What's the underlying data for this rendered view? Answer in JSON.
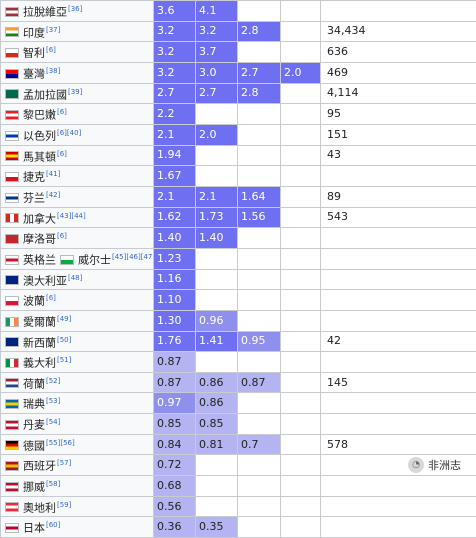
{
  "colors": {
    "v_high": "#6f6ff2",
    "v_mid": "#8f8fee",
    "v_low": "#b4b4f2"
  },
  "columns": [
    "country",
    "v1",
    "v2",
    "v3",
    "v4",
    "extra"
  ],
  "rows": [
    {
      "country": "拉脫維亞",
      "ref": "[36]",
      "flag": [
        "#9e3039",
        "#ffffff",
        "#9e3039"
      ],
      "flag_dir": "h",
      "values": [
        "3.6",
        "4.1",
        "",
        ""
      ],
      "extra": ""
    },
    {
      "country": "印度",
      "ref": "[37]",
      "flag": [
        "#ff9933",
        "#ffffff",
        "#138808"
      ],
      "flag_dir": "h",
      "values": [
        "3.2",
        "3.2",
        "2.8",
        ""
      ],
      "extra": "34,434"
    },
    {
      "country": "智利",
      "ref": "[6]",
      "flag": [
        "#ffffff",
        "#d52b1e"
      ],
      "flag_dir": "h",
      "values": [
        "3.2",
        "3.7",
        "",
        ""
      ],
      "extra": "636"
    },
    {
      "country": "臺灣",
      "ref": "[38]",
      "flag": [
        "#fe0000",
        "#000095"
      ],
      "flag_dir": "h",
      "values": [
        "3.2",
        "3.0",
        "2.7",
        "2.0"
      ],
      "extra": "469"
    },
    {
      "country": "孟加拉國",
      "ref": "[39]",
      "flag": [
        "#006a4e"
      ],
      "flag_dir": "h",
      "values": [
        "2.7",
        "2.7",
        "2.8",
        ""
      ],
      "extra": "4,114"
    },
    {
      "country": "黎巴嫩",
      "ref": "[6]",
      "flag": [
        "#ed1c24",
        "#ffffff",
        "#ed1c24"
      ],
      "flag_dir": "h",
      "values": [
        "2.2",
        "",
        "",
        ""
      ],
      "extra": "95"
    },
    {
      "country": "以色列",
      "ref": "[6][40]",
      "flag": [
        "#ffffff",
        "#0038b8",
        "#ffffff"
      ],
      "flag_dir": "h",
      "values": [
        "2.1",
        "2.0",
        "",
        ""
      ],
      "extra": "151"
    },
    {
      "country": "馬其頓",
      "ref": "[6]",
      "flag": [
        "#d20000",
        "#ffe600",
        "#d20000"
      ],
      "flag_dir": "h",
      "values": [
        "1.94",
        "",
        "",
        ""
      ],
      "extra": "43"
    },
    {
      "country": "捷克",
      "ref": "[41]",
      "flag": [
        "#ffffff",
        "#d7141a"
      ],
      "flag_dir": "h",
      "values": [
        "1.67",
        "",
        "",
        ""
      ],
      "extra": ""
    },
    {
      "country": "芬兰",
      "ref": "[42]",
      "flag": [
        "#ffffff",
        "#003580",
        "#ffffff"
      ],
      "flag_dir": "h",
      "values": [
        "2.1",
        "2.1",
        "1.64",
        ""
      ],
      "extra": "89"
    },
    {
      "country": "加拿大",
      "ref": "[43][44]",
      "flag": [
        "#d52b1e",
        "#ffffff",
        "#d52b1e"
      ],
      "flag_dir": "v",
      "values": [
        "1.62",
        "1.73",
        "1.56",
        ""
      ],
      "extra": "543"
    },
    {
      "country": "摩洛哥",
      "ref": "[6]",
      "flag": [
        "#c1272d"
      ],
      "flag_dir": "h",
      "values": [
        "1.40",
        "1.40",
        "",
        ""
      ],
      "extra": ""
    },
    {
      "country": "英格兰",
      "ref": "",
      "country2": "威尔士",
      "ref2": "[45][46][47]",
      "flag": [
        "#ffffff",
        "#ce1124",
        "#ffffff"
      ],
      "flag_dir": "h",
      "flag2": [
        "#ffffff",
        "#00b140"
      ],
      "values": [
        "1.23",
        "",
        "",
        ""
      ],
      "extra": ""
    },
    {
      "country": "澳大利亚",
      "ref": "[48]",
      "flag": [
        "#00247d"
      ],
      "flag_dir": "h",
      "values": [
        "1.16",
        "",
        "",
        ""
      ],
      "extra": ""
    },
    {
      "country": "波蘭",
      "ref": "[6]",
      "flag": [
        "#ffffff",
        "#dc143c"
      ],
      "flag_dir": "h",
      "values": [
        "1.10",
        "",
        "",
        ""
      ],
      "extra": ""
    },
    {
      "country": "愛爾蘭",
      "ref": "[49]",
      "flag": [
        "#169b62",
        "#ffffff",
        "#ff883e"
      ],
      "flag_dir": "v",
      "values": [
        "1.30",
        "0.96",
        "",
        ""
      ],
      "extra": ""
    },
    {
      "country": "新西蘭",
      "ref": "[50]",
      "flag": [
        "#00247d"
      ],
      "flag_dir": "h",
      "values": [
        "1.76",
        "1.41",
        "0.95",
        ""
      ],
      "extra": "42"
    },
    {
      "country": "義大利",
      "ref": "[51]",
      "flag": [
        "#009246",
        "#ffffff",
        "#ce2b37"
      ],
      "flag_dir": "v",
      "values": [
        "0.87",
        "",
        "",
        ""
      ],
      "extra": ""
    },
    {
      "country": "荷蘭",
      "ref": "[52]",
      "flag": [
        "#ae1c28",
        "#ffffff",
        "#21468b"
      ],
      "flag_dir": "h",
      "values": [
        "0.87",
        "0.86",
        "0.87",
        ""
      ],
      "extra": "145"
    },
    {
      "country": "瑞典",
      "ref": "[53]",
      "flag": [
        "#006aa7",
        "#fecc00",
        "#006aa7"
      ],
      "flag_dir": "h",
      "values": [
        "0.97",
        "0.86",
        "",
        ""
      ],
      "extra": ""
    },
    {
      "country": "丹麦",
      "ref": "[54]",
      "flag": [
        "#c60c30",
        "#ffffff",
        "#c60c30"
      ],
      "flag_dir": "h",
      "values": [
        "0.85",
        "0.85",
        "",
        ""
      ],
      "extra": ""
    },
    {
      "country": "德國",
      "ref": "[55][56]",
      "flag": [
        "#000000",
        "#dd0000",
        "#ffce00"
      ],
      "flag_dir": "h",
      "values": [
        "0.84",
        "0.81",
        "0.7",
        ""
      ],
      "extra": "578"
    },
    {
      "country": "西班牙",
      "ref": "[57]",
      "flag": [
        "#aa151b",
        "#f1bf00",
        "#aa151b"
      ],
      "flag_dir": "h",
      "values": [
        "0.72",
        "",
        "",
        ""
      ],
      "extra": ""
    },
    {
      "country": "挪威",
      "ref": "[58]",
      "flag": [
        "#ba0c2f",
        "#ffffff",
        "#ba0c2f"
      ],
      "flag_dir": "h",
      "values": [
        "0.68",
        "",
        "",
        ""
      ],
      "extra": ""
    },
    {
      "country": "奧地利",
      "ref": "[59]",
      "flag": [
        "#ed2939",
        "#ffffff",
        "#ed2939"
      ],
      "flag_dir": "h",
      "values": [
        "0.56",
        "",
        "",
        ""
      ],
      "extra": ""
    },
    {
      "country": "日本",
      "ref": "[60]",
      "flag": [
        "#ffffff",
        "#bc002d",
        "#ffffff"
      ],
      "flag_dir": "h",
      "values": [
        "0.36",
        "0.35",
        "",
        ""
      ],
      "extra": ""
    }
  ],
  "watermark": {
    "icon": "wechat-icon",
    "text": "非洲志"
  }
}
